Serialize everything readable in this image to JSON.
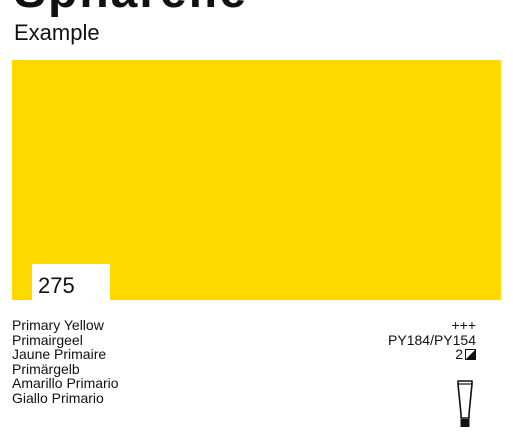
{
  "header": {
    "title_partial": "Spharelle",
    "subtitle": "Example"
  },
  "swatch": {
    "color": "#FDD900",
    "code": "275"
  },
  "names": [
    "Primary Yellow",
    "Primairgeel",
    "Jaune Primaire",
    "Primärgelb",
    "Amarillo Primario",
    "Giallo Primario"
  ],
  "specs": {
    "lightfastness": "+++",
    "pigments": "PY184/PY154",
    "opacity_level": "2",
    "opacity_icon": "half-filled-square-icon",
    "container_icon": "paint-tube-icon"
  }
}
